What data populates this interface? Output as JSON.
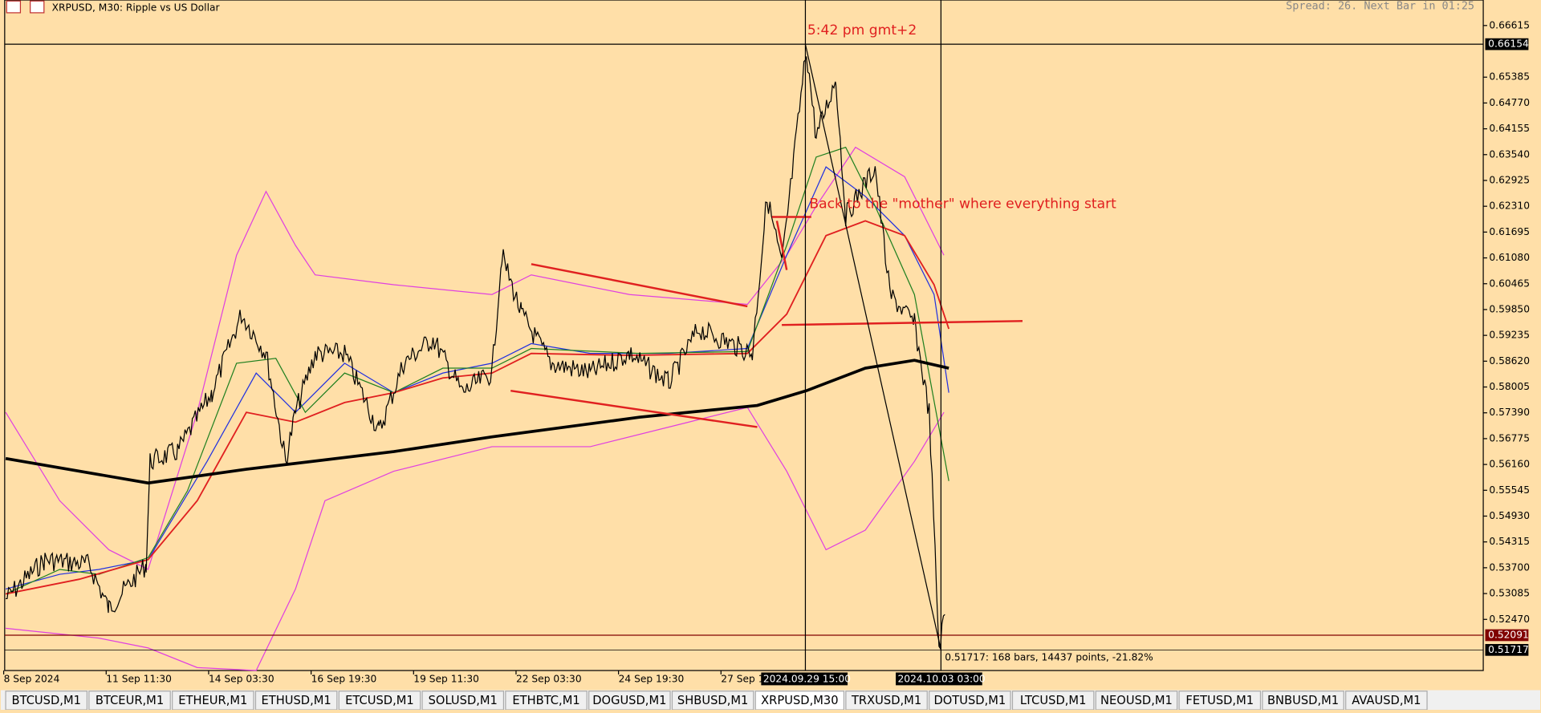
{
  "header": {
    "symbol": "XRPUSD, M30:  Ripple vs US Dollar",
    "info": "Spread: 26. Next Bar in 01:25"
  },
  "price_axis": {
    "labels": [
      "0.66615",
      "0.65385",
      "0.64770",
      "0.64155",
      "0.63540",
      "0.62925",
      "0.62310",
      "0.61695",
      "0.61080",
      "0.60465",
      "0.59850",
      "0.59235",
      "0.58620",
      "0.58005",
      "0.57390",
      "0.56775",
      "0.56160",
      "0.55545",
      "0.54930",
      "0.54315",
      "0.53700",
      "0.53085",
      "0.52470"
    ],
    "highlights": [
      "0.66154",
      "0.52091",
      "0.51717"
    ]
  },
  "time_axis": {
    "labels": [
      "8 Sep 2024",
      "11 Sep 11:30",
      "14 Sep 03:30",
      "16 Sep 19:30",
      "19 Sep 11:30",
      "22 Sep 03:30",
      "24 Sep 19:30",
      "27 Sep 1"
    ],
    "highlights": [
      "2024.09.29 15:00",
      "2024.10.03 03:00"
    ]
  },
  "annotations": {
    "time_note": "5:42 pm  gmt+2",
    "comment": "Back to the \"mother\" where everything start",
    "measure": "0.51717: 168 bars, 14437 points, -21.82%"
  },
  "tabs": {
    "items": [
      "BTCUSD,M1",
      "BTCEUR,M1",
      "ETHEUR,M1",
      "ETHUSD,M1",
      "ETCUSD,M1",
      "SOLUSD,M1",
      "ETHBTC,M1",
      "DOGUSD,M1",
      "SHBUSD,M1",
      "XRPUSD,M30",
      "TRXUSD,M1",
      "DOTUSD,M1",
      "LTCUSD,M1",
      "NEOUSD,M1",
      "FETUSD,M1",
      "BNBUSD,M1",
      "AVAUSD,M1"
    ],
    "active": "XRPUSD,M30"
  }
}
